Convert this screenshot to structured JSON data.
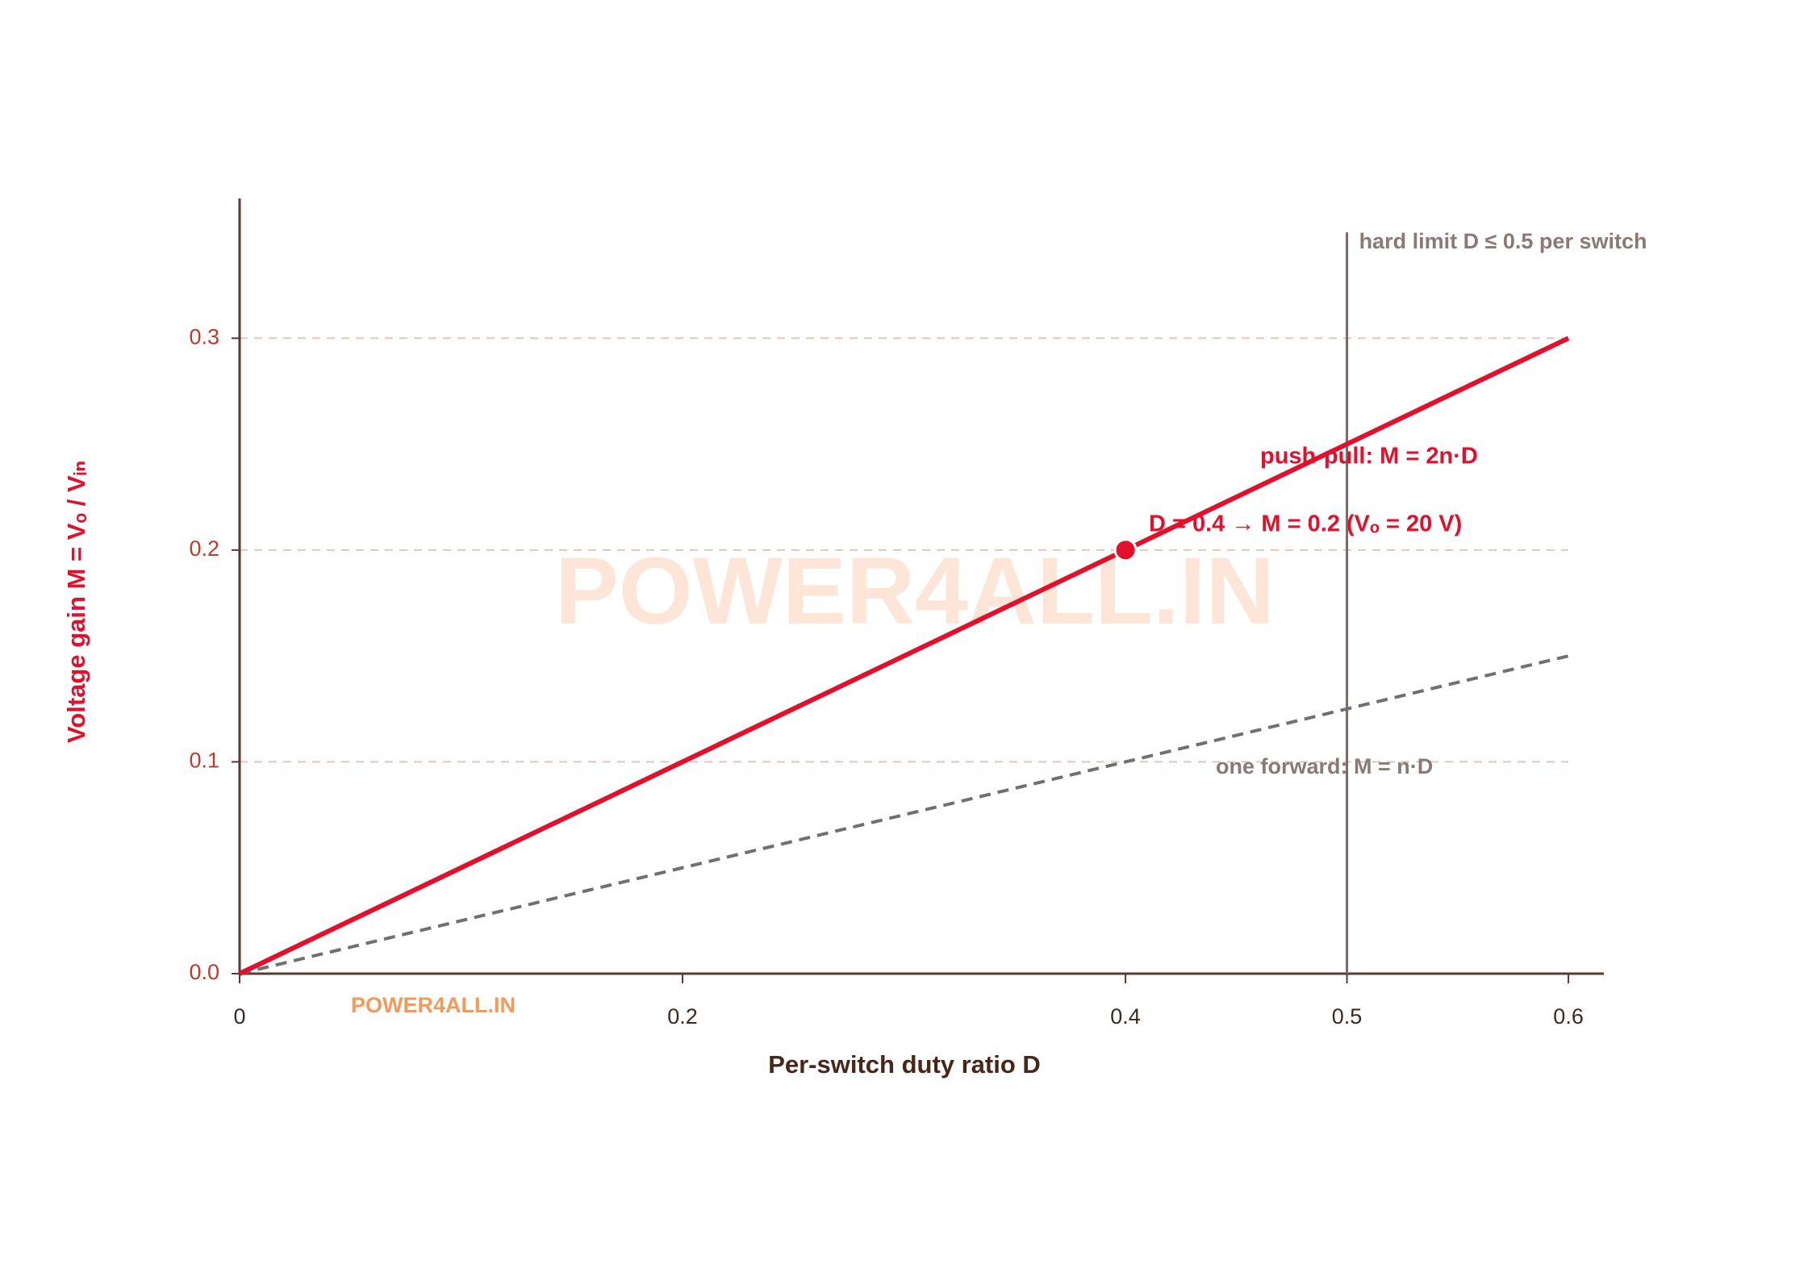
{
  "chart_data": {
    "type": "line",
    "watermark": "POWER4ALL.IN",
    "x_label": "Per-switch duty ratio D",
    "y_label": "Voltage gain M = Vₒ / Vᵢₙ",
    "x": [
      0,
      0.6
    ],
    "series": [
      {
        "name": "push-pull: M = 2n·D",
        "color": "#e3102c",
        "values": [
          0,
          0.3
        ],
        "style": "solid"
      },
      {
        "name": "one forward: M = n·D",
        "color": "#707070",
        "values": [
          0,
          0.15
        ],
        "style": "dashed"
      }
    ],
    "highlight": {
      "x": 0.4,
      "y": 0.2,
      "label": "D = 0.4 → M = 0.2 (Vₒ = 20 V)"
    },
    "limit": {
      "x": 0.5,
      "label": "hard limit D ≤ 0.5 per switch"
    },
    "xlim": [
      0,
      0.616
    ],
    "ylim": [
      0,
      0.366
    ],
    "xticks": [
      0,
      0.2,
      0.4,
      0.5,
      0.6
    ],
    "yticks": [
      {
        "value": 0,
        "label": "0.0"
      },
      0.1,
      0.2,
      0.3
    ],
    "grid": true
  }
}
